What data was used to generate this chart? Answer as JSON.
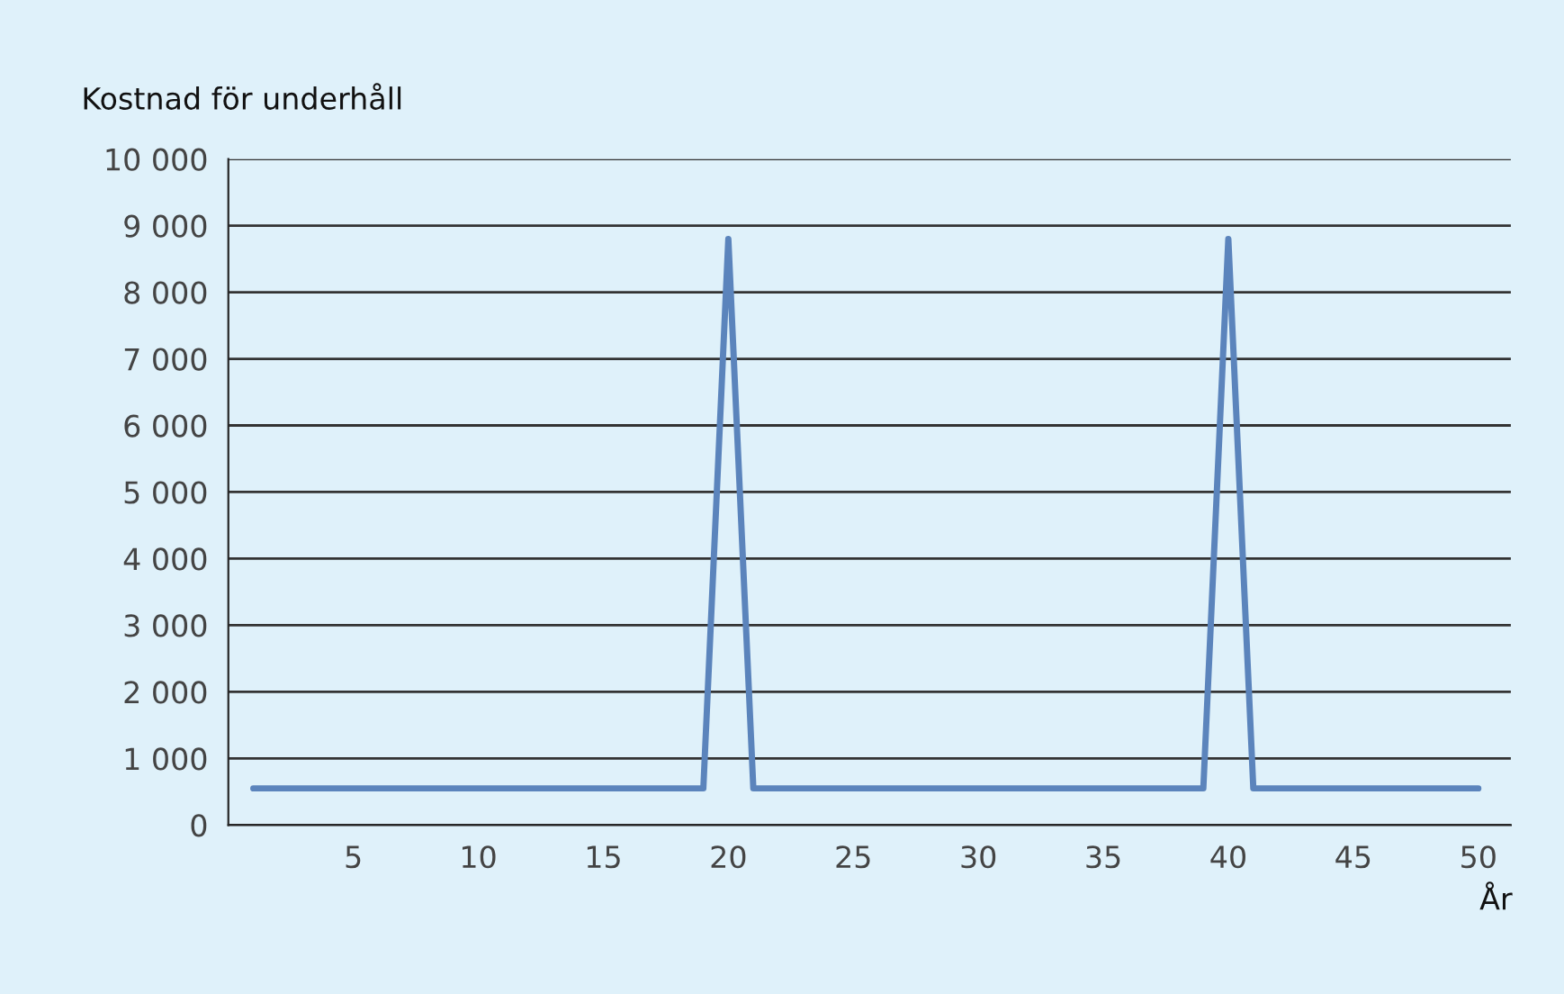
{
  "chart_data": {
    "type": "line",
    "ylabel": "Kostnad för underhåll",
    "xlabel": "År",
    "x": [
      1,
      19,
      20,
      21,
      39,
      40,
      41,
      50
    ],
    "series": [
      {
        "color": "#5b84bc",
        "values": [
          550,
          550,
          8800,
          550,
          550,
          8800,
          550,
          550
        ]
      }
    ],
    "xlim": [
      0,
      51.3
    ],
    "xticks": [
      5,
      10,
      15,
      20,
      25,
      30,
      35,
      40,
      45,
      50
    ],
    "ylim": [
      0,
      10000
    ],
    "yticks": [
      0,
      {
        "value": 1000,
        "label": "1 000"
      },
      {
        "value": 2000,
        "label": "2 000"
      },
      {
        "value": 3000,
        "label": "3 000"
      },
      {
        "value": 4000,
        "label": "4 000"
      },
      {
        "value": 5000,
        "label": "5 000"
      },
      {
        "value": 6000,
        "label": "6 000"
      },
      {
        "value": 7000,
        "label": "7 000"
      },
      {
        "value": 8000,
        "label": "8 000"
      },
      {
        "value": 9000,
        "label": "9 000"
      },
      {
        "value": 10000,
        "label": "10 000"
      }
    ],
    "grid": "y",
    "legend": false,
    "marker": "none",
    "line_style": "solid"
  }
}
